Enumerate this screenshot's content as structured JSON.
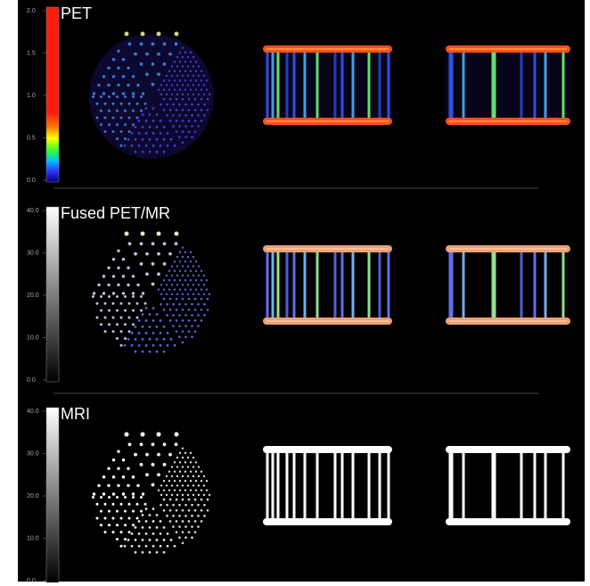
{
  "panels": [
    {
      "title": "PET",
      "scale_labels": [
        "2.0",
        "1.5",
        "1.0",
        "0.5",
        "0.0"
      ]
    },
    {
      "title": "Fused PET/MR",
      "scale_labels": [
        "40.0",
        "30.0",
        "20.0",
        "10.0",
        "0.0"
      ]
    },
    {
      "title": "MRI",
      "scale_labels": [
        "40.0",
        "30.0",
        "20.0",
        "10.0",
        "0.0"
      ]
    }
  ]
}
